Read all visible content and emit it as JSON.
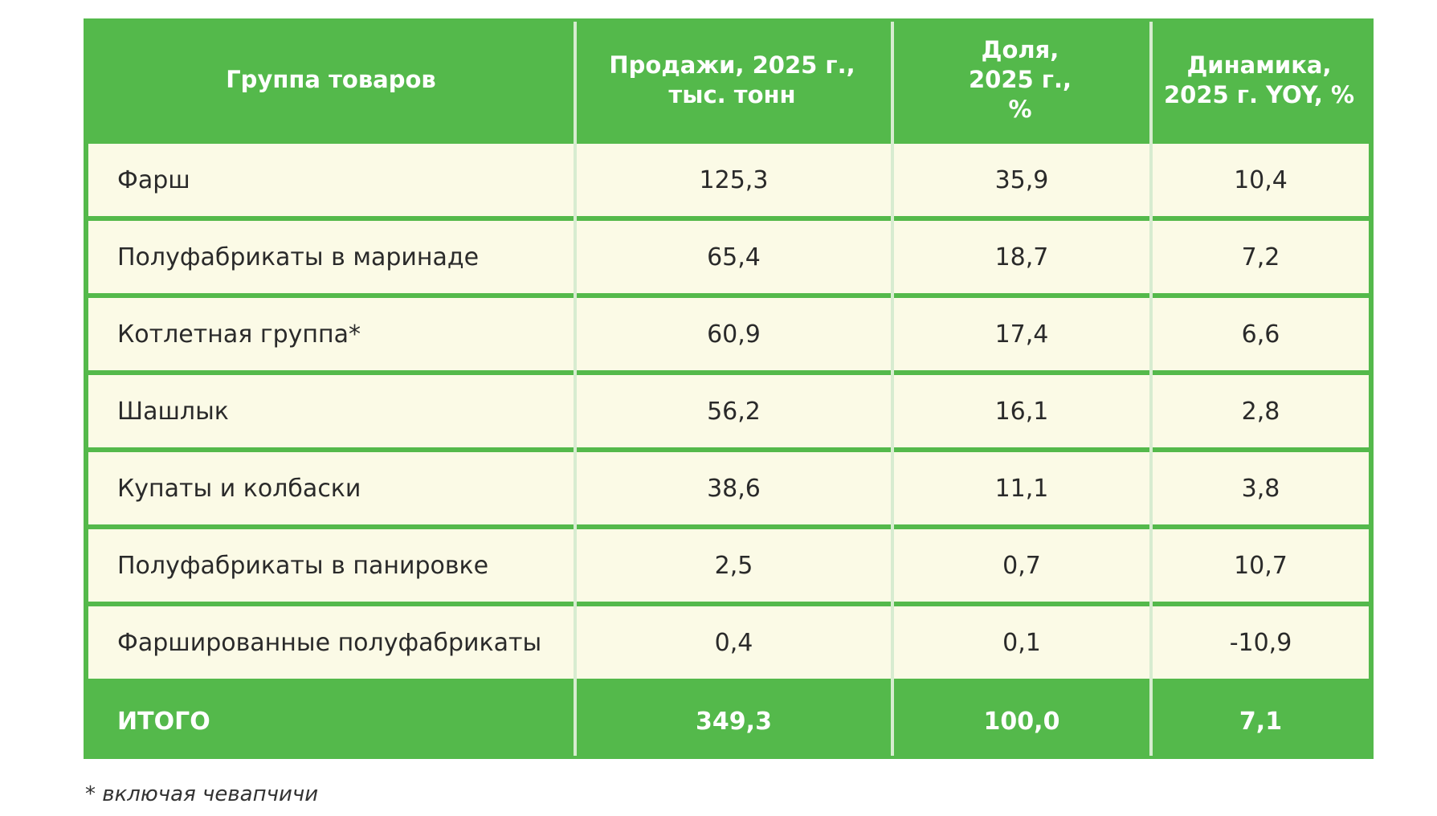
{
  "chart_data": {
    "type": "table",
    "columns": [
      "Группа товаров",
      "Продажи, 2025 г.,\nтыс. тонн",
      "Доля,\n2025 г.,\n%",
      "Динамика,\n2025 г. YOY, %"
    ],
    "rows": [
      {
        "group": "Фарш",
        "sales": "125,3",
        "share": "35,9",
        "dynamics": "10,4"
      },
      {
        "group": "Полуфабрикаты в маринаде",
        "sales": "65,4",
        "share": "18,7",
        "dynamics": "7,2"
      },
      {
        "group": "Котлетная группа*",
        "sales": "60,9",
        "share": "17,4",
        "dynamics": "6,6"
      },
      {
        "group": "Шашлык",
        "sales": "56,2",
        "share": "16,1",
        "dynamics": "2,8"
      },
      {
        "group": "Купаты и колбаски",
        "sales": "38,6",
        "share": "11,1",
        "dynamics": "3,8"
      },
      {
        "group": "Полуфабрикаты в панировке",
        "sales": "2,5",
        "share": "0,7",
        "dynamics": "10,7"
      },
      {
        "group": "Фаршированные полуфабрикаты",
        "sales": "0,4",
        "share": "0,1",
        "dynamics": "-10,9"
      }
    ],
    "total": {
      "group": "ИТОГО",
      "sales": "349,3",
      "share": "100,0",
      "dynamics": "7,1"
    },
    "footnote": "* включая чевапчичи"
  },
  "colors": {
    "header_bg": "#54b94b",
    "row_bg": "#fbfae6",
    "divider": "#d7ecd0"
  }
}
